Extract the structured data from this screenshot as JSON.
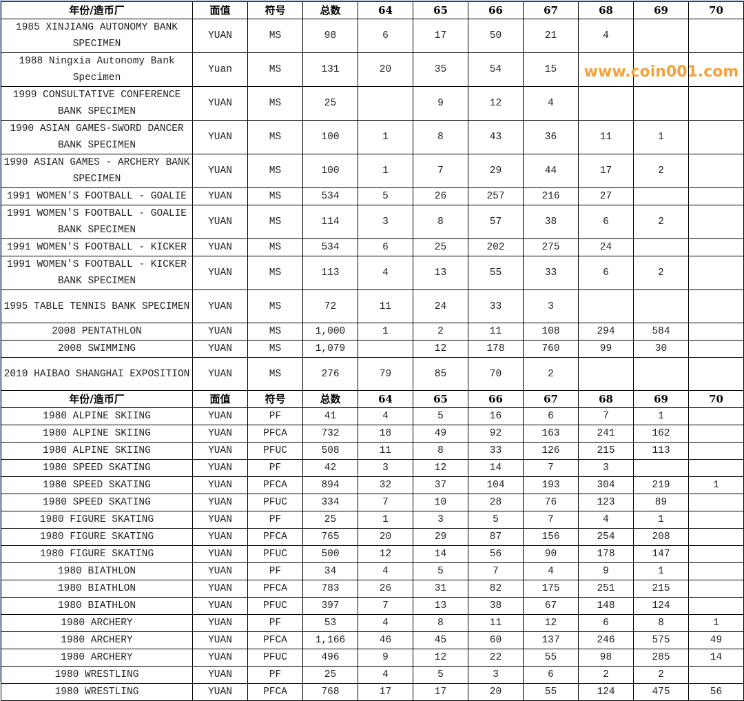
{
  "headers": [
    "年份/造币厂",
    "面值",
    "符号",
    "总数",
    "64",
    "65",
    "66",
    "67",
    "68",
    "69",
    "70"
  ],
  "section1": [
    {
      "name": "1985 XINJIANG AUTONOMY BANK SPECIMEN",
      "tall": true,
      "cells": [
        "YUAN",
        "MS",
        "98",
        "6",
        "17",
        "50",
        "21",
        "4",
        "",
        ""
      ]
    },
    {
      "name": "1988 Ningxia Autonomy Bank Specimen",
      "tall": true,
      "cells": [
        "Yuan",
        "MS",
        "131",
        "20",
        "35",
        "54",
        "15",
        "",
        "",
        ""
      ]
    },
    {
      "name": "1999 CONSULTATIVE CONFERENCE BANK SPECIMEN",
      "tall": true,
      "cells": [
        "YUAN",
        "MS",
        "25",
        "",
        "9",
        "12",
        "4",
        "",
        "",
        ""
      ]
    },
    {
      "name": "1990 ASIAN GAMES-SWORD DANCER BANK SPECIMEN",
      "tall": true,
      "cells": [
        "YUAN",
        "MS",
        "100",
        "1",
        "8",
        "43",
        "36",
        "11",
        "1",
        ""
      ]
    },
    {
      "name": "1990 ASIAN GAMES - ARCHERY BANK SPECIMEN",
      "tall": true,
      "cells": [
        "YUAN",
        "MS",
        "100",
        "1",
        "7",
        "29",
        "44",
        "17",
        "2",
        ""
      ]
    },
    {
      "name": "1991 WOMEN'S FOOTBALL - GOALIE",
      "tall": false,
      "cells": [
        "YUAN",
        "MS",
        "534",
        "5",
        "26",
        "257",
        "216",
        "27",
        "",
        ""
      ]
    },
    {
      "name": "1991 WOMEN'S FOOTBALL - GOALIE BANK SPECIMEN",
      "tall": true,
      "cells": [
        "YUAN",
        "MS",
        "114",
        "3",
        "8",
        "57",
        "38",
        "6",
        "2",
        ""
      ]
    },
    {
      "name": "1991 WOMEN'S FOOTBALL - KICKER",
      "tall": false,
      "cells": [
        "YUAN",
        "MS",
        "534",
        "6",
        "25",
        "202",
        "275",
        "24",
        "",
        ""
      ]
    },
    {
      "name": "1991 WOMEN'S FOOTBALL - KICKER BANK SPECIMEN",
      "tall": true,
      "cells": [
        "YUAN",
        "MS",
        "113",
        "4",
        "13",
        "55",
        "33",
        "6",
        "2",
        ""
      ]
    },
    {
      "name": "1995 TABLE TENNIS BANK SPECIMEN",
      "tall": true,
      "cells": [
        "YUAN",
        "MS",
        "72",
        "11",
        "24",
        "33",
        "3",
        "",
        "",
        ""
      ]
    },
    {
      "name": "2008 PENTATHLON",
      "tall": false,
      "cells": [
        "YUAN",
        "MS",
        "1,000",
        "1",
        "2",
        "11",
        "108",
        "294",
        "584",
        ""
      ]
    },
    {
      "name": "2008 SWIMMING",
      "tall": false,
      "cells": [
        "YUAN",
        "MS",
        "1,079",
        "",
        "12",
        "178",
        "760",
        "99",
        "30",
        ""
      ]
    },
    {
      "name": "2010 HAIBAO SHANGHAI EXPOSITION",
      "tall": true,
      "cells": [
        "YUAN",
        "MS",
        "276",
        "79",
        "85",
        "70",
        "2",
        "",
        "",
        ""
      ]
    }
  ],
  "section2": [
    {
      "name": "1980 ALPINE SKIING",
      "cells": [
        "YUAN",
        "PF",
        "41",
        "4",
        "5",
        "16",
        "6",
        "7",
        "1",
        ""
      ]
    },
    {
      "name": "1980 ALPINE SKIING",
      "cells": [
        "YUAN",
        "PFCA",
        "732",
        "18",
        "49",
        "92",
        "163",
        "241",
        "162",
        ""
      ]
    },
    {
      "name": "1980 ALPINE SKIING",
      "cells": [
        "YUAN",
        "PFUC",
        "508",
        "11",
        "8",
        "33",
        "126",
        "215",
        "113",
        ""
      ]
    },
    {
      "name": "1980 SPEED SKATING",
      "cells": [
        "YUAN",
        "PF",
        "42",
        "3",
        "12",
        "14",
        "7",
        "3",
        "",
        ""
      ]
    },
    {
      "name": "1980 SPEED SKATING",
      "cells": [
        "YUAN",
        "PFCA",
        "894",
        "32",
        "37",
        "104",
        "193",
        "304",
        "219",
        "1"
      ]
    },
    {
      "name": "1980 SPEED SKATING",
      "cells": [
        "YUAN",
        "PFUC",
        "334",
        "7",
        "10",
        "28",
        "76",
        "123",
        "89",
        ""
      ]
    },
    {
      "name": "1980 FIGURE SKATING",
      "cells": [
        "YUAN",
        "PF",
        "25",
        "1",
        "3",
        "5",
        "7",
        "4",
        "1",
        ""
      ]
    },
    {
      "name": "1980 FIGURE SKATING",
      "cells": [
        "YUAN",
        "PFCA",
        "765",
        "20",
        "29",
        "87",
        "156",
        "254",
        "208",
        ""
      ]
    },
    {
      "name": "1980 FIGURE SKATING",
      "cells": [
        "YUAN",
        "PFUC",
        "500",
        "12",
        "14",
        "56",
        "90",
        "178",
        "147",
        ""
      ]
    },
    {
      "name": "1980 BIATHLON",
      "cells": [
        "YUAN",
        "PF",
        "34",
        "4",
        "5",
        "7",
        "4",
        "9",
        "1",
        ""
      ]
    },
    {
      "name": "1980 BIATHLON",
      "cells": [
        "YUAN",
        "PFCA",
        "783",
        "26",
        "31",
        "82",
        "175",
        "251",
        "215",
        ""
      ]
    },
    {
      "name": "1980 BIATHLON",
      "cells": [
        "YUAN",
        "PFUC",
        "397",
        "7",
        "13",
        "38",
        "67",
        "148",
        "124",
        ""
      ]
    },
    {
      "name": "1980 ARCHERY",
      "cells": [
        "YUAN",
        "PF",
        "53",
        "4",
        "8",
        "11",
        "12",
        "6",
        "8",
        "1"
      ]
    },
    {
      "name": "1980 ARCHERY",
      "cells": [
        "YUAN",
        "PFCA",
        "1,166",
        "46",
        "45",
        "60",
        "137",
        "246",
        "575",
        "49"
      ]
    },
    {
      "name": "1980 ARCHERY",
      "cells": [
        "YUAN",
        "PFUC",
        "496",
        "9",
        "12",
        "22",
        "55",
        "98",
        "285",
        "14"
      ]
    },
    {
      "name": "1980 WRESTLING",
      "cells": [
        "YUAN",
        "PF",
        "25",
        "4",
        "5",
        "3",
        "6",
        "2",
        "2",
        ""
      ]
    },
    {
      "name": "1980 WRESTLING",
      "cells": [
        "YUAN",
        "PFCA",
        "768",
        "17",
        "17",
        "20",
        "55",
        "124",
        "475",
        "56"
      ]
    }
  ],
  "watermark": "www.coin001.com",
  "colors": {
    "watermark": "#f4a23c",
    "grid": "#000000"
  }
}
